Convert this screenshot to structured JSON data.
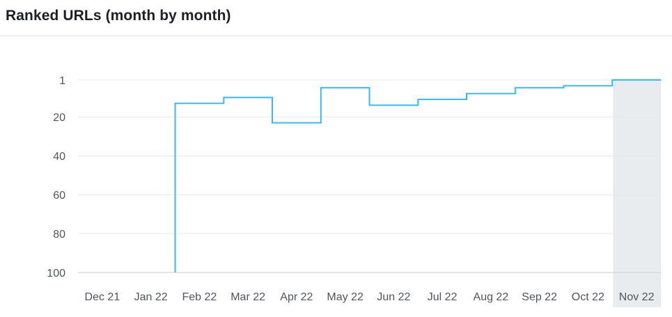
{
  "header": {
    "title": "Ranked URLs (month by month)"
  },
  "chart_data": {
    "type": "line",
    "title": "Ranked URLs (month by month)",
    "step": true,
    "categories": [
      "Dec 21",
      "Jan 22",
      "Feb 22",
      "Mar 22",
      "Apr 22",
      "May 22",
      "Jun 22",
      "Jul 22",
      "Aug 22",
      "Sep 22",
      "Oct 22",
      "Nov 22"
    ],
    "series": [
      {
        "values": [
          null,
          null,
          13,
          10,
          23,
          5,
          14,
          11,
          8,
          5,
          4,
          1
        ]
      }
    ],
    "y_ticks": [
      1,
      20,
      40,
      60,
      80,
      100
    ],
    "ylim": [
      100,
      1
    ],
    "y_reversed": true,
    "highlighted_category": "Nov 22",
    "grid": true,
    "colors": {
      "line": "#3bb8ee",
      "grid": "#e6e8eb",
      "axis": "#c9ccd1",
      "highlight": "#e9ecee"
    }
  }
}
